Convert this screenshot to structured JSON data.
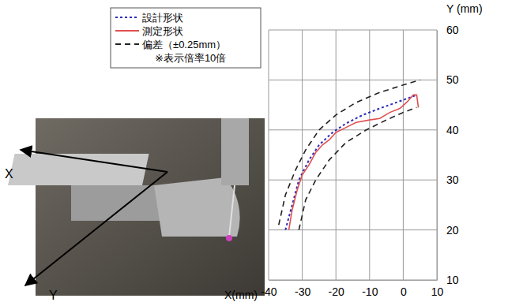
{
  "chart_data": {
    "type": "line",
    "x_label": "X(mm)",
    "y_label": "Y (mm)",
    "note": "※表示倍率10倍",
    "xlim": [
      -40,
      10
    ],
    "xticks": [
      -40,
      -30,
      -20,
      -10,
      0,
      10
    ],
    "ylim": [
      10,
      60
    ],
    "yticks": [
      10,
      20,
      30,
      40,
      50,
      60
    ],
    "grid": true,
    "legend": "upper left",
    "series": [
      {
        "name": "設計形状",
        "color": "#2b2bb8",
        "line_style": "dotted",
        "x": [
          -35,
          -33,
          -31,
          -28,
          -25,
          -21,
          -17,
          -12,
          -7,
          -2,
          2,
          4
        ],
        "values": [
          20,
          25,
          30,
          34,
          37,
          39.5,
          41.3,
          43,
          44.3,
          45.5,
          46.5,
          47
        ]
      },
      {
        "name": "測定形状",
        "color": "#e05050",
        "line_style": "solid",
        "x": [
          -34,
          -33,
          -31.5,
          -30,
          -28,
          -26,
          -24,
          -22,
          -20,
          -17,
          -14,
          -10,
          -7,
          -4,
          -1,
          1,
          3,
          4,
          4.5
        ],
        "values": [
          20,
          24,
          28,
          31,
          33,
          35.5,
          37,
          38,
          39.5,
          40.5,
          41.5,
          42,
          42.3,
          43.5,
          44.3,
          45.5,
          47,
          47,
          44.5
        ]
      },
      {
        "name": "偏差（±0.25mm）",
        "color": "#222222",
        "line_style": "dashed",
        "x": [
          -37,
          -35,
          -32,
          -29,
          -25,
          -20,
          -14,
          -7,
          0,
          5,
          null,
          -31,
          -29,
          -26,
          -22,
          -17,
          -11,
          -5,
          0,
          4
        ],
        "values": [
          21,
          27,
          32,
          36,
          40,
          43,
          45.5,
          47.5,
          49,
          50,
          null,
          20,
          26,
          30,
          34,
          37.5,
          40,
          42,
          43.5,
          44.5
        ]
      }
    ]
  },
  "photo": {
    "labels": [
      "X",
      "Y"
    ]
  }
}
